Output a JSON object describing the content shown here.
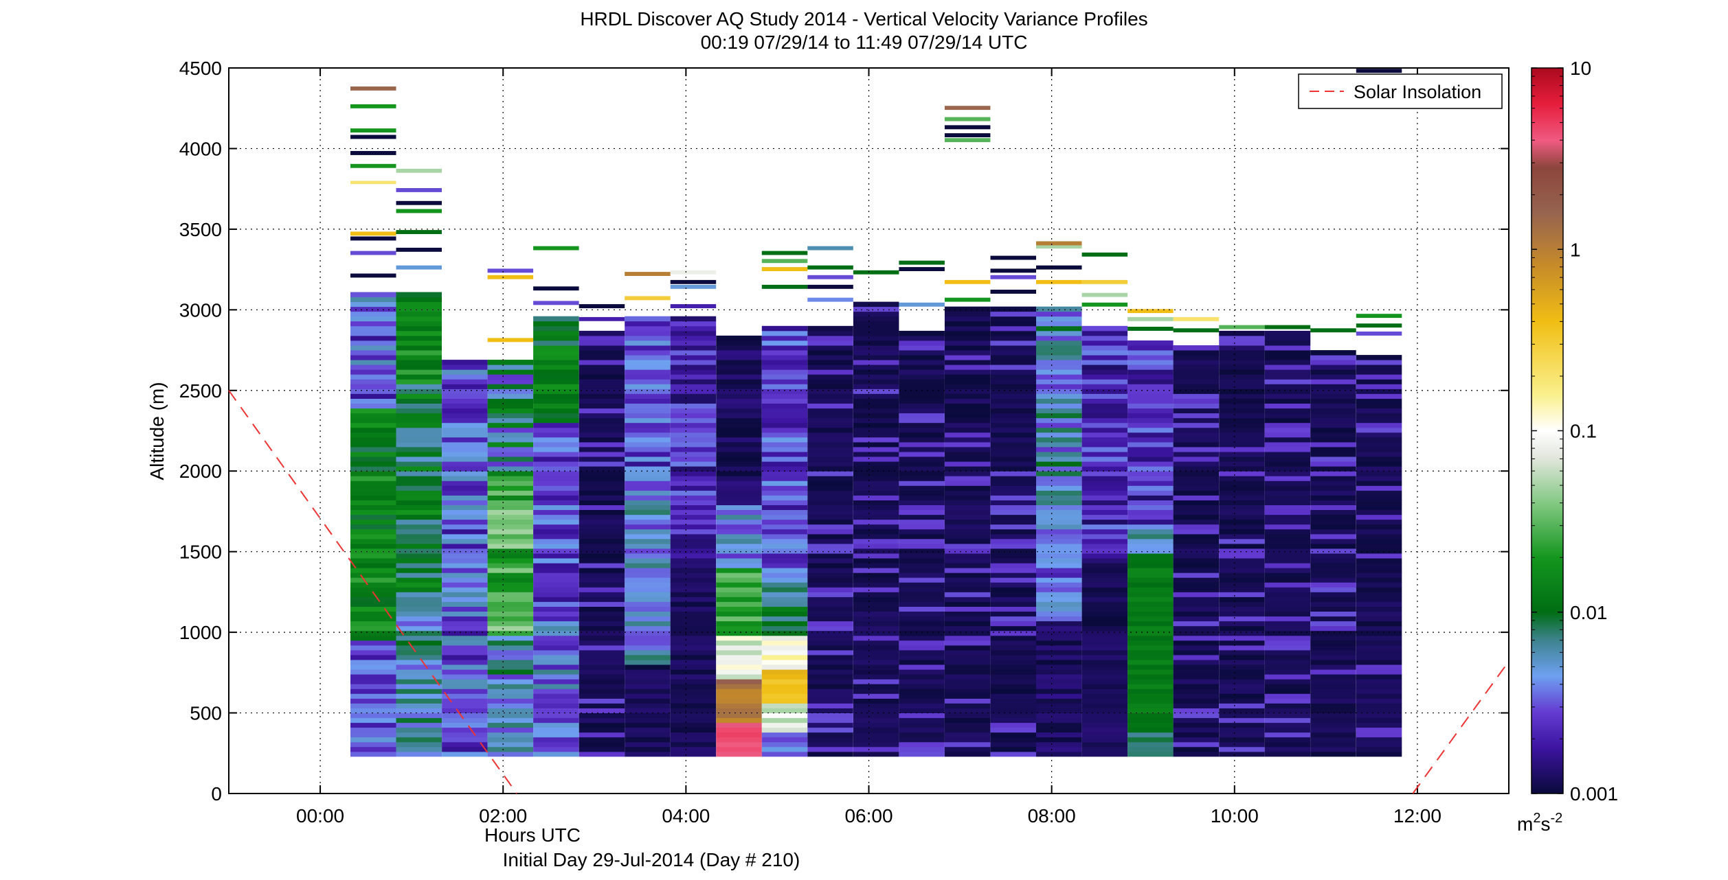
{
  "chart_data": {
    "type": "heatmap",
    "title": "HRDL Discover AQ Study 2014 - Vertical Velocity Variance Profiles",
    "subtitle": "00:19 07/29/14 to 11:49 07/29/14  UTC",
    "xlabel": "Hours UTC",
    "xlabel2": "Initial Day 29-Jul-2014 (Day # 210)",
    "ylabel": "Altitude (m)",
    "x_range_hours": [
      -1.0,
      13.0
    ],
    "ylim": [
      0,
      4500
    ],
    "x_ticks": [
      {
        "value": 0,
        "label": "00:00"
      },
      {
        "value": 2,
        "label": "02:00"
      },
      {
        "value": 4,
        "label": "04:00"
      },
      {
        "value": 6,
        "label": "06:00"
      },
      {
        "value": 8,
        "label": "08:00"
      },
      {
        "value": 10,
        "label": "10:00"
      },
      {
        "value": 12,
        "label": "12:00"
      }
    ],
    "y_ticks": [
      0,
      500,
      1000,
      1500,
      2000,
      2500,
      3000,
      3500,
      4000,
      4500
    ],
    "grid": true,
    "grid_style": "dotted",
    "legend": {
      "entries": [
        "Solar Insolation"
      ],
      "position": "top-right",
      "line_color": "#ee3333",
      "line_style": "dashed"
    },
    "colorbar": {
      "scale": "log",
      "range": [
        0.001,
        10
      ],
      "tick_labels": [
        "0.001",
        "0.01",
        "0.1",
        "1",
        "10"
      ],
      "units_base": "m",
      "units_exp1": "2",
      "units_mid": "s",
      "units_exp2": "-2"
    },
    "solar_insolation": [
      {
        "x_hours": -1.0,
        "y": 2500
      },
      {
        "x_hours": 2.15,
        "y": 0
      },
      {
        "x_hours": 11.95,
        "y": 0
      },
      {
        "x_hours": 13.0,
        "y": 820
      }
    ],
    "profiles": [
      {
        "t_start": 0.33,
        "t_end": 0.83,
        "base": 230,
        "data_top": 3100,
        "char": "low_purple_mid_green",
        "layers": [
          [
            3200,
            "0.001"
          ],
          [
            3340,
            "0.003"
          ],
          [
            3430,
            "0.001"
          ],
          [
            3460,
            "0.4"
          ],
          [
            3780,
            "0.2"
          ],
          [
            3800,
            "0.1"
          ],
          [
            3880,
            "0.02"
          ],
          [
            3960,
            "0.001"
          ],
          [
            4060,
            "0.001"
          ],
          [
            4100,
            "0.02"
          ],
          [
            4250,
            "0.02"
          ],
          [
            4360,
            "1.5"
          ]
        ]
      },
      {
        "t_start": 0.83,
        "t_end": 1.33,
        "base": 230,
        "data_top": 3100,
        "char": "green_cyan",
        "layers": [
          [
            3250,
            "0.005"
          ],
          [
            3360,
            "0.001"
          ],
          [
            3470,
            "0.01"
          ],
          [
            3520,
            "0.1"
          ],
          [
            3600,
            "0.02"
          ],
          [
            3650,
            "0.001"
          ],
          [
            3730,
            "0.003"
          ],
          [
            3850,
            "0.05"
          ]
        ]
      },
      {
        "t_start": 1.33,
        "t_end": 1.83,
        "base": 230,
        "data_top": 2680,
        "char": "purple_blue",
        "layers": []
      },
      {
        "t_start": 1.83,
        "t_end": 2.33,
        "base": 230,
        "data_top": 2680,
        "char": "green_light",
        "layers": [
          [
            2800,
            "0.4"
          ],
          [
            3190,
            "0.4"
          ],
          [
            3230,
            "0.003"
          ]
        ]
      },
      {
        "t_start": 2.33,
        "t_end": 2.83,
        "base": 230,
        "data_top": 2960,
        "char": "purple_green",
        "layers": [
          [
            3030,
            "0.003"
          ],
          [
            3120,
            "0.001"
          ],
          [
            3370,
            "0.02"
          ]
        ]
      },
      {
        "t_start": 2.83,
        "t_end": 3.33,
        "base": 230,
        "data_top": 2850,
        "char": "dark",
        "layers": [
          [
            2930,
            "0.002"
          ],
          [
            3010,
            "0.001"
          ]
        ]
      },
      {
        "t_start": 3.33,
        "t_end": 3.83,
        "base": 230,
        "data_top": 2950,
        "char": "blue_purple",
        "layers": [
          [
            3060,
            "0.3"
          ],
          [
            3110,
            "0.1"
          ],
          [
            3210,
            "1.0"
          ],
          [
            3240,
            "0.1"
          ]
        ]
      },
      {
        "t_start": 3.83,
        "t_end": 4.33,
        "base": 230,
        "data_top": 2960,
        "char": "dark_purple",
        "layers": [
          [
            3010,
            "0.002"
          ],
          [
            3130,
            "0.005"
          ],
          [
            3160,
            "0.001"
          ],
          [
            3220,
            "0.08"
          ]
        ]
      },
      {
        "t_start": 4.33,
        "t_end": 4.83,
        "base": 230,
        "data_top": 2820,
        "char": "warm_low",
        "layers": []
      },
      {
        "t_start": 4.83,
        "t_end": 5.33,
        "base": 230,
        "data_top": 2900,
        "char": "yellow_low",
        "layers": [
          [
            3130,
            "0.01"
          ],
          [
            3240,
            "0.4"
          ],
          [
            3290,
            "0.03"
          ],
          [
            3340,
            "0.01"
          ]
        ]
      },
      {
        "t_start": 5.33,
        "t_end": 5.83,
        "base": 230,
        "data_top": 2900,
        "char": "dark",
        "layers": [
          [
            3050,
            "0.004"
          ],
          [
            3130,
            "0.001"
          ],
          [
            3190,
            "0.003"
          ],
          [
            3250,
            "0.01"
          ],
          [
            3370,
            "0.006"
          ]
        ]
      },
      {
        "t_start": 5.83,
        "t_end": 6.33,
        "base": 230,
        "data_top": 3050,
        "char": "dark",
        "layers": [
          [
            3220,
            "0.01"
          ]
        ]
      },
      {
        "t_start": 6.33,
        "t_end": 6.83,
        "base": 230,
        "data_top": 2870,
        "char": "dark",
        "layers": [
          [
            3020,
            "0.005"
          ],
          [
            3240,
            "0.001"
          ],
          [
            3280,
            "0.01"
          ]
        ]
      },
      {
        "t_start": 6.83,
        "t_end": 7.33,
        "base": 230,
        "data_top": 3000,
        "char": "dark",
        "layers": [
          [
            3050,
            "0.02"
          ],
          [
            3160,
            "0.4"
          ],
          [
            4040,
            "0.03"
          ],
          [
            4070,
            "0.001"
          ],
          [
            4120,
            "0.001"
          ],
          [
            4170,
            "0.03"
          ],
          [
            4240,
            "1.5"
          ]
        ]
      },
      {
        "t_start": 7.33,
        "t_end": 7.83,
        "base": 230,
        "data_top": 3000,
        "char": "dark",
        "layers": [
          [
            3100,
            "0.001"
          ],
          [
            3190,
            "0.003"
          ],
          [
            3230,
            "0.001"
          ],
          [
            3310,
            "0.001"
          ]
        ]
      },
      {
        "t_start": 7.83,
        "t_end": 8.33,
        "base": 230,
        "data_top": 3000,
        "char": "purple_blue_top",
        "layers": [
          [
            3160,
            "0.4"
          ],
          [
            3250,
            "0.001"
          ],
          [
            3380,
            "0.05"
          ],
          [
            3400,
            "1.0"
          ]
        ]
      },
      {
        "t_start": 8.33,
        "t_end": 8.83,
        "base": 230,
        "data_top": 2900,
        "char": "dark_purple",
        "layers": [
          [
            3020,
            "0.02"
          ],
          [
            3080,
            "0.05"
          ],
          [
            3160,
            "0.3"
          ],
          [
            3250,
            "0.1"
          ],
          [
            3330,
            "0.01"
          ]
        ]
      },
      {
        "t_start": 8.83,
        "t_end": 9.33,
        "base": 230,
        "data_top": 2800,
        "char": "green_low",
        "layers": [
          [
            2870,
            "0.01"
          ],
          [
            2930,
            "0.05"
          ],
          [
            2980,
            "0.4"
          ]
        ]
      },
      {
        "t_start": 9.33,
        "t_end": 9.83,
        "base": 230,
        "data_top": 2770,
        "char": "dark",
        "layers": [
          [
            2860,
            "0.01"
          ],
          [
            2930,
            "0.2"
          ]
        ]
      },
      {
        "t_start": 9.83,
        "t_end": 10.33,
        "base": 230,
        "data_top": 2850,
        "char": "dark",
        "layers": [
          [
            2880,
            "0.03"
          ]
        ]
      },
      {
        "t_start": 10.33,
        "t_end": 10.83,
        "base": 230,
        "data_top": 2850,
        "char": "dark",
        "layers": [
          [
            2880,
            "0.01"
          ]
        ]
      },
      {
        "t_start": 10.83,
        "t_end": 11.33,
        "base": 230,
        "data_top": 2750,
        "char": "dark",
        "layers": [
          [
            2860,
            "0.01"
          ]
        ]
      },
      {
        "t_start": 11.33,
        "t_end": 11.83,
        "base": 230,
        "data_top": 2720,
        "char": "dark",
        "layers": [
          [
            2840,
            "0.003"
          ],
          [
            2890,
            "0.01"
          ],
          [
            2950,
            "0.02"
          ],
          [
            4470,
            "0.001"
          ]
        ]
      }
    ]
  }
}
